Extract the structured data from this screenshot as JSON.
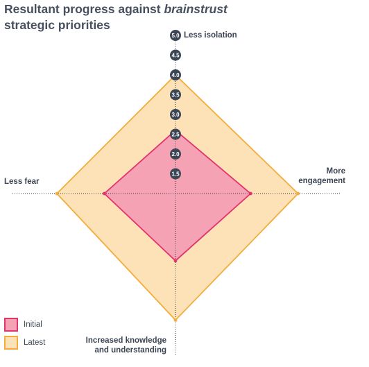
{
  "title": {
    "part1": "Resultant progress against ",
    "part2": "brainstrust",
    "part3": "strategic priorities"
  },
  "chart_data": {
    "type": "radar",
    "axes": [
      {
        "name": "Less isolation",
        "direction": "up"
      },
      {
        "name": "More engagement",
        "direction": "right"
      },
      {
        "name": "Increased knowledge and understanding",
        "direction": "down"
      },
      {
        "name": "Less fear",
        "direction": "left"
      }
    ],
    "axis_labels": {
      "top": [
        "Less isolation"
      ],
      "right": [
        "More",
        "engagement"
      ],
      "bottom": [
        "Increased knowledge",
        "and understanding"
      ],
      "left": [
        "Less fear"
      ]
    },
    "scale": {
      "min": 1,
      "max": 5,
      "ticks": [
        "1.5",
        "2.0",
        "2.5",
        "3.0",
        "3.5",
        "4.0",
        "4.5",
        "5.0"
      ]
    },
    "series": [
      {
        "name": "Initial",
        "values": [
          2.6,
          2.9,
          2.7,
          2.8
        ],
        "fill": "#f5a3b4",
        "stroke": "#e3336f"
      },
      {
        "name": "Latest",
        "values": [
          4.0,
          4.1,
          4.2,
          4.0
        ],
        "fill": "#fde2b7",
        "stroke": "#f4ac3c"
      }
    ],
    "legend_position": "bottom-left",
    "tick_marker_color": "#3d4654"
  }
}
